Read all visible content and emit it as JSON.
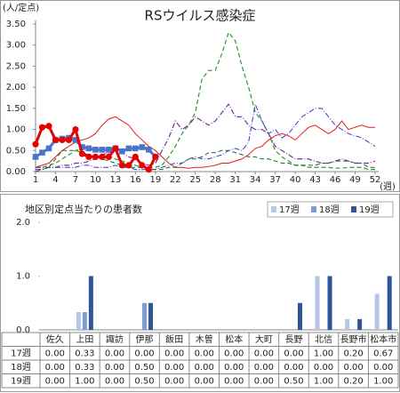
{
  "chart_data": [
    {
      "type": "line",
      "title": "RSウイルス感染症",
      "ylabel": "(人/定点)",
      "xlabel": "(週)",
      "x": [
        1,
        2,
        3,
        4,
        5,
        6,
        7,
        8,
        9,
        10,
        11,
        12,
        13,
        14,
        15,
        16,
        17,
        18,
        19,
        20,
        21,
        22,
        23,
        24,
        25,
        26,
        27,
        28,
        29,
        30,
        31,
        32,
        33,
        34,
        35,
        36,
        37,
        38,
        39,
        40,
        41,
        42,
        43,
        44,
        45,
        46,
        47,
        48,
        49,
        50,
        51,
        52
      ],
      "xlim": [
        1,
        52
      ],
      "xticks": [
        1,
        4,
        7,
        10,
        13,
        16,
        19,
        22,
        25,
        28,
        31,
        34,
        37,
        40,
        43,
        46,
        49,
        52
      ],
      "ylim": [
        0,
        3.5
      ],
      "yticks": [
        {
          "value": 0,
          "label": "0.00"
        },
        {
          "value": 0.5,
          "label": "0.50"
        },
        {
          "value": 1,
          "label": "1.00"
        },
        {
          "value": 1.5,
          "label": "1.50"
        },
        {
          "value": 2,
          "label": "2.00"
        },
        {
          "value": 2.5,
          "label": "2.50"
        },
        {
          "value": 3,
          "label": "3.00"
        },
        {
          "value": 3.5,
          "label": "3.50"
        }
      ],
      "grid": false,
      "series": [
        {
          "color": "#e31a1a",
          "dash": "solid",
          "width": 1,
          "values": [
            0.1,
            0.15,
            0.2,
            0.35,
            0.5,
            0.6,
            0.7,
            0.75,
            0.8,
            0.9,
            1.1,
            1.25,
            1.3,
            1.2,
            1.1,
            0.9,
            0.75,
            0.6,
            0.5,
            0.35,
            0.2,
            0.1,
            0.1,
            0.08,
            0.1,
            0.1,
            0.12,
            0.15,
            0.2,
            0.2,
            0.25,
            0.3,
            0.4,
            0.55,
            0.6,
            0.75,
            0.85,
            0.9,
            0.85,
            0.75,
            0.9,
            1.05,
            1.1,
            1.0,
            0.9,
            1.0,
            1.2,
            1.0,
            1.05,
            1.1,
            1.05,
            1.05
          ]
        },
        {
          "color": "#2e9a2e",
          "dash": "dashed",
          "width": 1.2,
          "values": [
            0.1,
            0.1,
            0.15,
            0.2,
            0.3,
            0.4,
            0.5,
            0.55,
            0.55,
            0.5,
            0.4,
            0.35,
            0.3,
            0.25,
            0.2,
            0.15,
            0.1,
            0.1,
            0.1,
            0.15,
            0.35,
            0.6,
            0.9,
            1.1,
            1.4,
            2.2,
            2.4,
            2.4,
            2.8,
            3.3,
            3.1,
            2.5,
            2.0,
            1.4,
            1.2,
            0.9,
            0.5,
            0.35,
            0.25,
            0.15,
            0.15,
            0.1,
            0.1,
            0.1,
            0.1,
            0.08,
            0.08,
            0.1,
            0.1,
            0.1,
            0.05,
            0.05
          ]
        },
        {
          "color": "#7a2fa3",
          "dash": "dashdot",
          "width": 1.2,
          "values": [
            0.05,
            0.05,
            0.1,
            0.1,
            0.15,
            0.15,
            0.2,
            0.2,
            0.25,
            0.3,
            0.4,
            0.45,
            0.5,
            0.45,
            0.35,
            0.3,
            0.2,
            0.15,
            0.2,
            0.5,
            0.8,
            1.2,
            1.0,
            1.1,
            1.3,
            1.2,
            1.1,
            1.2,
            1.4,
            1.6,
            1.3,
            1.3,
            1.1,
            1.0,
            1.0,
            0.9,
            0.6,
            0.5,
            0.4,
            0.3,
            0.3,
            0.3,
            0.25,
            0.2,
            0.2,
            0.25,
            0.3,
            0.25,
            0.2,
            0.2,
            0.2,
            0.25
          ]
        },
        {
          "color": "#3a3ad0",
          "dash": "dashdot",
          "width": 1,
          "values": [
            0.1,
            0.1,
            0.1,
            0.1,
            0.1,
            0.1,
            0.1,
            0.15,
            0.15,
            0.1,
            0.1,
            0.1,
            0.15,
            0.1,
            0.1,
            0.05,
            0.05,
            0.05,
            0.05,
            0.1,
            0.15,
            0.2,
            0.2,
            0.3,
            0.35,
            0.3,
            0.3,
            0.35,
            0.4,
            0.5,
            0.55,
            0.5,
            0.7,
            1.6,
            1.2,
            0.9,
            1.0,
            0.8,
            0.9,
            1.1,
            1.3,
            1.4,
            1.5,
            1.5,
            1.3,
            1.1,
            1.0,
            0.9,
            0.85,
            0.8,
            0.7,
            0.6
          ]
        },
        {
          "color": "#1f6b1f",
          "dash": "dashed",
          "width": 1,
          "values": [
            0.0,
            0.05,
            0.1,
            0.3,
            0.5,
            0.5,
            0.5,
            0.45,
            0.4,
            0.35,
            0.3,
            0.25,
            0.2,
            0.15,
            0.1,
            0.1,
            0.1,
            0.05,
            0.05,
            0.05,
            0.1,
            0.1,
            0.2,
            0.3,
            0.3,
            0.35,
            0.45,
            0.45,
            0.5,
            0.5,
            0.45,
            0.4,
            0.35,
            0.35,
            0.3,
            0.3,
            0.25,
            0.2,
            0.2,
            0.15,
            0.15,
            0.15,
            0.15,
            0.2,
            0.2,
            0.25,
            0.25,
            0.25,
            0.2,
            0.2,
            0.1,
            0.1
          ]
        },
        {
          "color": "#4a74c9",
          "dash": "solid",
          "width": 3,
          "marker": "square",
          "values": [
            0.35,
            0.45,
            0.55,
            0.75,
            0.78,
            0.8,
            0.75,
            0.58,
            0.55,
            0.52,
            0.52,
            0.52,
            0.55,
            0.48,
            0.55,
            0.55,
            0.58,
            0.52,
            0.35,
            null,
            null,
            null,
            null,
            null,
            null,
            null,
            null,
            null,
            null,
            null,
            null,
            null,
            null,
            null,
            null,
            null,
            null,
            null,
            null,
            null,
            null,
            null,
            null,
            null,
            null,
            null,
            null,
            null,
            null,
            null,
            null,
            null
          ]
        },
        {
          "color": "#e60000",
          "dash": "solid",
          "width": 3,
          "marker": "circle",
          "values": [
            0.65,
            1.05,
            1.08,
            0.75,
            0.75,
            0.75,
            1.0,
            0.42,
            0.35,
            0.35,
            0.35,
            0.35,
            0.55,
            0.15,
            0.15,
            0.35,
            0.15,
            0.05,
            0.35,
            null,
            null,
            null,
            null,
            null,
            null,
            null,
            null,
            null,
            null,
            null,
            null,
            null,
            null,
            null,
            null,
            null,
            null,
            null,
            null,
            null,
            null,
            null,
            null,
            null,
            null,
            null,
            null,
            null,
            null,
            null,
            null,
            null
          ]
        }
      ]
    },
    {
      "type": "bar",
      "title": "地区別定点当たりの患者数",
      "categories": [
        "佐久",
        "上田",
        "諏訪",
        "伊那",
        "飯田",
        "木曽",
        "松本",
        "大町",
        "長野",
        "北信",
        "長野市",
        "松本市"
      ],
      "ylim": [
        0,
        2
      ],
      "yticks": [
        {
          "value": 0,
          "label": "0.0"
        },
        {
          "value": 1,
          "label": "1.0"
        },
        {
          "value": 2,
          "label": "2.0"
        }
      ],
      "grid": false,
      "legend": "top-right",
      "series": [
        {
          "name": "17週",
          "color": "#b4c7e7",
          "values": [
            0,
            0.33,
            0,
            0,
            0,
            0,
            0,
            0,
            0,
            1,
            0.2,
            0.67
          ],
          "value_labels": [
            "0.00",
            "0.33",
            "0.00",
            "0.00",
            "0.00",
            "0.00",
            "0.00",
            "0.00",
            "0.00",
            "1.00",
            "0.20",
            "0.67"
          ]
        },
        {
          "name": "18週",
          "color": "#7f9fd4",
          "values": [
            0,
            0.33,
            0,
            0.5,
            0,
            0,
            0,
            0,
            0,
            0,
            0,
            0
          ],
          "value_labels": [
            "0.00",
            "0.33",
            "0.00",
            "0.50",
            "0.00",
            "0.00",
            "0.00",
            "0.00",
            "0.00",
            "0.00",
            "0.00",
            "0.00"
          ]
        },
        {
          "name": "19週",
          "color": "#2f5597",
          "values": [
            0,
            1,
            0,
            0.5,
            0,
            0,
            0,
            0,
            0.5,
            1,
            0.2,
            1
          ],
          "value_labels": [
            "0.00",
            "1.00",
            "0.00",
            "0.50",
            "0.00",
            "0.00",
            "0.00",
            "0.00",
            "0.50",
            "1.00",
            "0.20",
            "1.00"
          ]
        }
      ]
    }
  ]
}
